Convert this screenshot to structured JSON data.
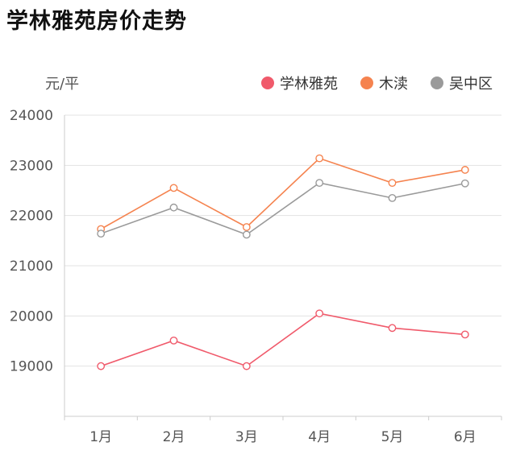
{
  "chart_data": {
    "type": "line",
    "title": "学林雅苑房价走势",
    "ylabel": "元/平",
    "xlabel": "",
    "categories": [
      "1月",
      "2月",
      "3月",
      "4月",
      "5月",
      "6月"
    ],
    "ylim": [
      18000,
      24000
    ],
    "yticks": [
      19000,
      20000,
      21000,
      22000,
      23000,
      24000
    ],
    "grid": true,
    "legend_position": "top-right",
    "series": [
      {
        "name": "学林雅苑",
        "color": "#f05a6b",
        "values": [
          19000,
          19510,
          19000,
          20050,
          19760,
          19630
        ]
      },
      {
        "name": "木渎",
        "color": "#f5834f",
        "values": [
          21730,
          22550,
          21770,
          23140,
          22650,
          22910
        ]
      },
      {
        "name": "吴中区",
        "color": "#9a9a9a",
        "values": [
          21640,
          22160,
          21620,
          22650,
          22350,
          22640
        ]
      }
    ]
  }
}
